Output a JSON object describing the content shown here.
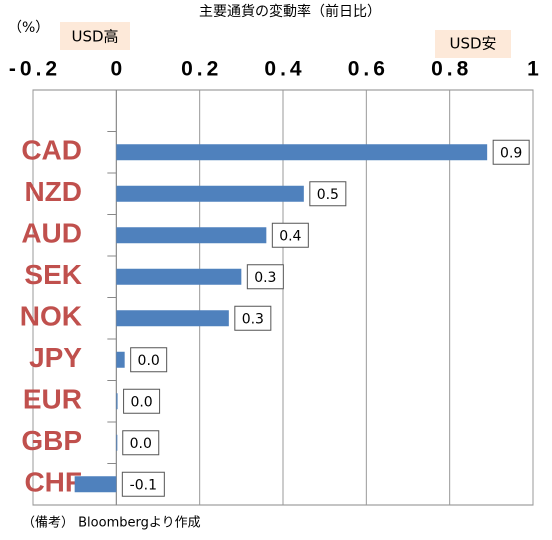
{
  "chart_data": {
    "type": "bar",
    "orientation": "horizontal",
    "title": "主要通貨の変動率（前日比）",
    "unit_label": "（%）",
    "annotations": [
      "USD高",
      "USD安"
    ],
    "note": "（備考） Bloombergより作成",
    "categories": [
      "CAD",
      "NZD",
      "AUD",
      "SEK",
      "NOK",
      "JPY",
      "EUR",
      "GBP",
      "CHF"
    ],
    "values": [
      0.89,
      0.45,
      0.36,
      0.3,
      0.27,
      0.02,
      0.003,
      0.001,
      -0.1
    ],
    "value_labels": [
      "0.9",
      "0.5",
      "0.4",
      "0.3",
      "0.3",
      "0.0",
      "0.0",
      "0.0",
      "-0.1"
    ],
    "color": "#4f81bd",
    "xlim": [
      -0.2,
      1
    ],
    "xticks": [
      -0.2,
      0,
      0.2,
      0.4,
      0.6,
      0.8,
      1
    ],
    "grid": true
  }
}
